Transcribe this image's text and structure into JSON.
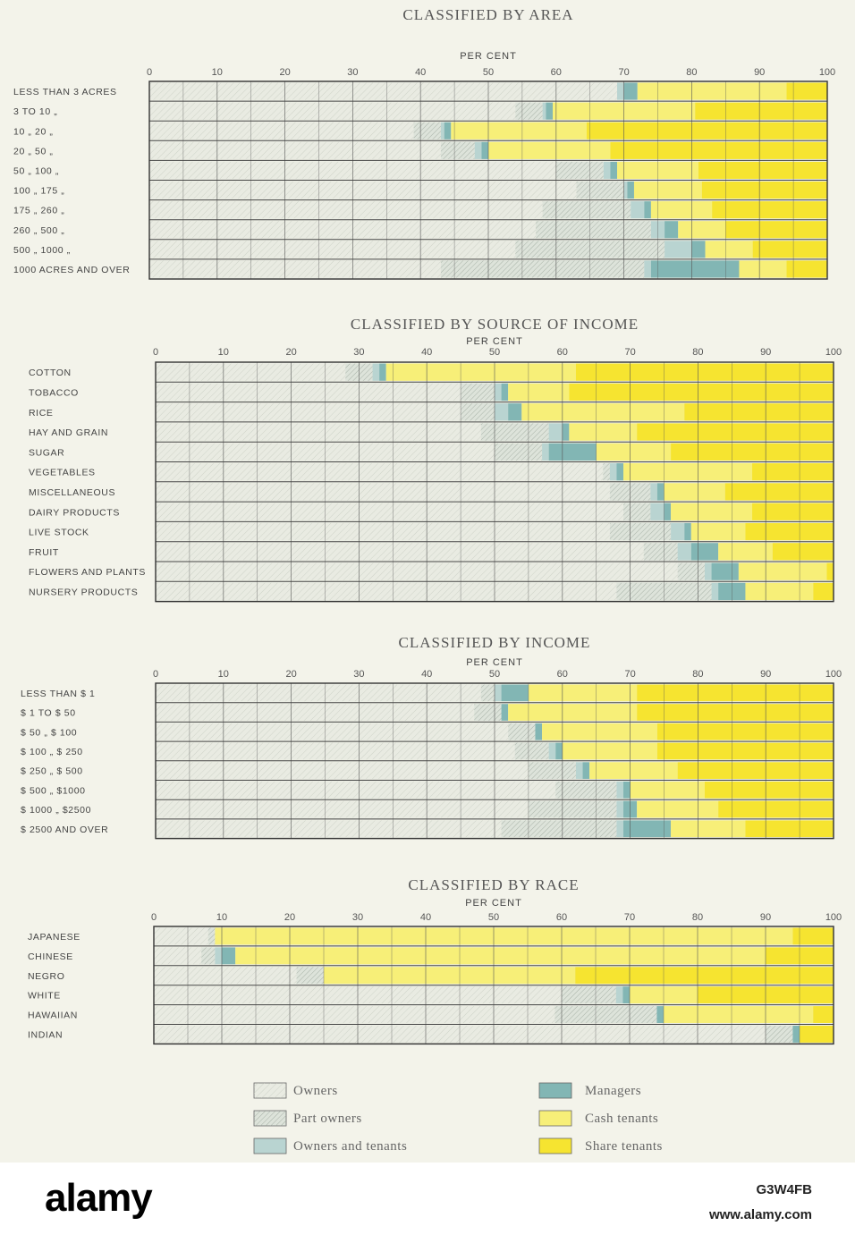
{
  "colors": {
    "Owners": "#e9ebe2",
    "Part owners": "#dde3da",
    "Owners and tenants": "#b9d4d1",
    "Managers": "#82b6b4",
    "Cash tenants": "#f7ef78",
    "Share tenants": "#f6e430"
  },
  "chart_data": [
    {
      "type": "bar",
      "orientation": "horizontal",
      "stacked": true,
      "title": "CLASSIFIED BY AREA",
      "xlabel": "PER CENT",
      "xlim": [
        0,
        100
      ],
      "ticks": [
        "0",
        "10",
        "20",
        "30",
        "40",
        "50",
        "60",
        "70",
        "80",
        "90",
        "100"
      ],
      "categories": [
        "LESS THAN 3 ACRES",
        "3 TO 10 „",
        "10 „ 20 „",
        "20 „ 50 „",
        "50 „ 100 „",
        "100 „ 175 „",
        "175 „ 260 „",
        "260 „ 500 „",
        "500 „ 1000 „",
        "1000 ACRES AND OVER"
      ],
      "series": [
        {
          "name": "Owners",
          "values": [
            69,
            54,
            39,
            43,
            60,
            63,
            58,
            57,
            54,
            43
          ]
        },
        {
          "name": "Part owners",
          "values": [
            0,
            4,
            4,
            5,
            7,
            7,
            13,
            17,
            22,
            30
          ]
        },
        {
          "name": "Owners and tenants",
          "values": [
            1,
            0.5,
            0.5,
            1,
            1,
            0.5,
            2,
            2,
            4,
            1
          ]
        },
        {
          "name": "Managers",
          "values": [
            2,
            1,
            1,
            1,
            1,
            1,
            1,
            2,
            2,
            13
          ]
        },
        {
          "name": "Cash tenants",
          "values": [
            22,
            21,
            20,
            18,
            12,
            10,
            9,
            7,
            7,
            7
          ]
        },
        {
          "name": "Share tenants",
          "values": [
            6,
            19.5,
            35.5,
            32,
            19,
            18.5,
            17,
            15,
            11,
            6
          ]
        }
      ]
    },
    {
      "type": "bar",
      "orientation": "horizontal",
      "stacked": true,
      "title": "CLASSIFIED BY SOURCE OF INCOME",
      "xlabel": "PER CENT",
      "xlim": [
        0,
        100
      ],
      "ticks": [
        "0",
        "10",
        "20",
        "30",
        "40",
        "50",
        "60",
        "70",
        "80",
        "90",
        "100"
      ],
      "categories": [
        "COTTON",
        "TOBACCO",
        "RICE",
        "HAY AND GRAIN",
        "SUGAR",
        "VEGETABLES",
        "MISCELLANEOUS",
        "DAIRY PRODUCTS",
        "LIVE STOCK",
        "FRUIT",
        "FLOWERS AND PLANTS",
        "NURSERY PRODUCTS"
      ],
      "series": [
        {
          "name": "Owners",
          "values": [
            28,
            45,
            45,
            48,
            50,
            66,
            67,
            69,
            67,
            72,
            77,
            68
          ]
        },
        {
          "name": "Part owners",
          "values": [
            4,
            5,
            5,
            10,
            7,
            1,
            6,
            4,
            9,
            5,
            4,
            14
          ]
        },
        {
          "name": "Owners and tenants",
          "values": [
            1,
            1,
            2,
            2,
            1,
            1,
            1,
            2,
            2,
            2,
            1,
            1
          ]
        },
        {
          "name": "Managers",
          "values": [
            1,
            1,
            2,
            1,
            7,
            1,
            1,
            1,
            1,
            4,
            4,
            4
          ]
        },
        {
          "name": "Cash tenants",
          "values": [
            28,
            9,
            24,
            10,
            11,
            19,
            9,
            12,
            8,
            8,
            13,
            10
          ]
        },
        {
          "name": "Share tenants",
          "values": [
            38,
            39,
            22,
            29,
            24,
            12,
            16,
            12,
            13,
            9,
            1,
            3
          ]
        }
      ]
    },
    {
      "type": "bar",
      "orientation": "horizontal",
      "stacked": true,
      "title": "CLASSIFIED BY INCOME",
      "xlabel": "PER CENT",
      "xlim": [
        0,
        100
      ],
      "ticks": [
        "0",
        "10",
        "20",
        "30",
        "40",
        "50",
        "60",
        "70",
        "80",
        "90",
        "100"
      ],
      "categories": [
        "LESS THAN $ 1",
        "$ 1 TO $ 50",
        "$ 50 „ $ 100",
        "$ 100 „ $ 250",
        "$ 250 „ $ 500",
        "$ 500 „ $1000",
        "$ 1000 „ $2500",
        "$ 2500 AND OVER"
      ],
      "series": [
        {
          "name": "Owners",
          "values": [
            48,
            47,
            52,
            53,
            55,
            59,
            55,
            51
          ]
        },
        {
          "name": "Part owners",
          "values": [
            2,
            4,
            4,
            5,
            7,
            9,
            13,
            17
          ]
        },
        {
          "name": "Owners and tenants",
          "values": [
            1,
            0,
            0,
            1,
            1,
            1,
            1,
            1
          ]
        },
        {
          "name": "Managers",
          "values": [
            4,
            1,
            1,
            1,
            1,
            1,
            2,
            7
          ]
        },
        {
          "name": "Cash tenants",
          "values": [
            16,
            19,
            17,
            14,
            13,
            11,
            12,
            11
          ]
        },
        {
          "name": "Share tenants",
          "values": [
            29,
            29,
            26,
            26,
            23,
            19,
            17,
            13
          ]
        }
      ]
    },
    {
      "type": "bar",
      "orientation": "horizontal",
      "stacked": true,
      "title": "CLASSIFIED BY RACE",
      "xlabel": "PER CENT",
      "xlim": [
        0,
        100
      ],
      "ticks": [
        "0",
        "10",
        "20",
        "30",
        "40",
        "50",
        "60",
        "70",
        "80",
        "90",
        "100"
      ],
      "categories": [
        "JAPANESE",
        "CHINESE",
        "NEGRO",
        "WHITE",
        "HAWAIIAN",
        "INDIAN"
      ],
      "series": [
        {
          "name": "Owners",
          "values": [
            8,
            7,
            21,
            60,
            59,
            90
          ]
        },
        {
          "name": "Part owners",
          "values": [
            1,
            2,
            4,
            8,
            15,
            4
          ]
        },
        {
          "name": "Owners and tenants",
          "values": [
            0,
            1,
            0,
            1,
            0,
            0
          ]
        },
        {
          "name": "Managers",
          "values": [
            0,
            2,
            0,
            1,
            1,
            1
          ]
        },
        {
          "name": "Cash tenants",
          "values": [
            85,
            78,
            37,
            10,
            22,
            0
          ]
        },
        {
          "name": "Share tenants",
          "values": [
            6,
            10,
            38,
            20,
            3,
            5
          ]
        }
      ]
    }
  ],
  "legend": {
    "items": [
      "Owners",
      "Part owners",
      "Owners and tenants",
      "Managers",
      "Cash tenants",
      "Share tenants"
    ]
  },
  "watermark": {
    "logo_text": "alamy",
    "image_id": "G3W4FB",
    "url": "www.alamy.com"
  }
}
